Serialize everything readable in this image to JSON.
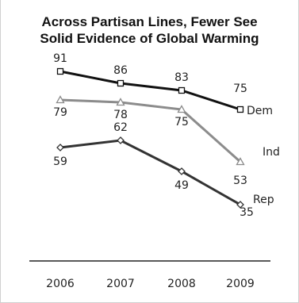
{
  "chart_data": {
    "type": "line",
    "title_lines": [
      "Across Partisan Lines, Fewer See",
      "Solid Evidence of Global Warming"
    ],
    "categories": [
      "2006",
      "2007",
      "2008",
      "2009"
    ],
    "series": [
      {
        "name": "Dem",
        "values": [
          91,
          86,
          83,
          75
        ],
        "color": "#111111",
        "marker": "square"
      },
      {
        "name": "Ind",
        "values": [
          79,
          78,
          75,
          53
        ],
        "color": "#8c8c8c",
        "marker": "triangle"
      },
      {
        "name": "Rep",
        "values": [
          59,
          62,
          49,
          35
        ],
        "color": "#333333",
        "marker": "diamond"
      }
    ],
    "grid": false,
    "legend": "end-of-line labels"
  }
}
